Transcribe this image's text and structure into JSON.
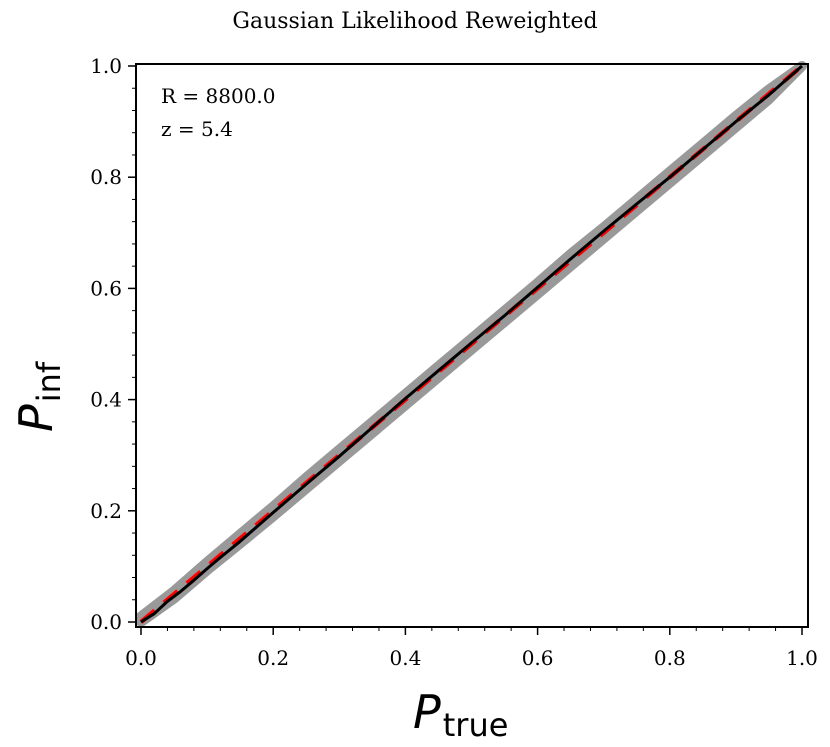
{
  "chart_data": {
    "type": "line",
    "title": "Gaussian Likelihood Reweighted",
    "xlabel": {
      "main": "P",
      "sub": "true"
    },
    "ylabel": {
      "main": "P",
      "sub": "inf"
    },
    "xlim": [
      0.0,
      1.0
    ],
    "ylim": [
      0.0,
      1.0
    ],
    "xticks": [
      "0.0",
      "0.2",
      "0.4",
      "0.6",
      "0.8",
      "1.0"
    ],
    "yticks": [
      "0.0",
      "0.2",
      "0.4",
      "0.6",
      "0.8",
      "1.0"
    ],
    "grid": false,
    "annotations": [
      "R = 8800.0",
      "z = 5.4"
    ],
    "series": [
      {
        "role": "band",
        "color": "#999999",
        "x": [
          0.0,
          0.05,
          0.1,
          0.15,
          0.2,
          0.25,
          0.3,
          0.35,
          0.4,
          0.45,
          0.5,
          0.55,
          0.6,
          0.65,
          0.7,
          0.75,
          0.8,
          0.85,
          0.9,
          0.95,
          1.0
        ],
        "lower": [
          0.0,
          0.042,
          0.093,
          0.141,
          0.19,
          0.24,
          0.29,
          0.34,
          0.39,
          0.44,
          0.49,
          0.54,
          0.59,
          0.64,
          0.69,
          0.74,
          0.79,
          0.84,
          0.89,
          0.94,
          1.0
        ],
        "upper": [
          0.01,
          0.056,
          0.108,
          0.158,
          0.208,
          0.26,
          0.31,
          0.36,
          0.41,
          0.46,
          0.51,
          0.56,
          0.61,
          0.662,
          0.71,
          0.76,
          0.81,
          0.86,
          0.91,
          0.958,
          1.0
        ]
      },
      {
        "role": "reference",
        "color": "#ff0000",
        "style": "dashed",
        "x": [
          0.0,
          1.0
        ],
        "y": [
          0.0,
          1.0
        ]
      },
      {
        "role": "measured",
        "color": "#000000",
        "x": [
          0.0,
          0.02,
          0.04,
          0.06,
          0.08,
          0.1,
          0.12,
          0.15,
          0.2,
          0.25,
          0.3,
          0.35,
          0.4,
          0.45,
          0.5,
          0.55,
          0.6,
          0.65,
          0.7,
          0.75,
          0.8,
          0.85,
          0.9,
          0.95,
          1.0
        ],
        "y": [
          0.0,
          0.015,
          0.037,
          0.055,
          0.075,
          0.096,
          0.116,
          0.145,
          0.197,
          0.248,
          0.298,
          0.35,
          0.402,
          0.452,
          0.502,
          0.551,
          0.602,
          0.653,
          0.703,
          0.752,
          0.8,
          0.85,
          0.9,
          0.948,
          1.0
        ]
      }
    ]
  }
}
